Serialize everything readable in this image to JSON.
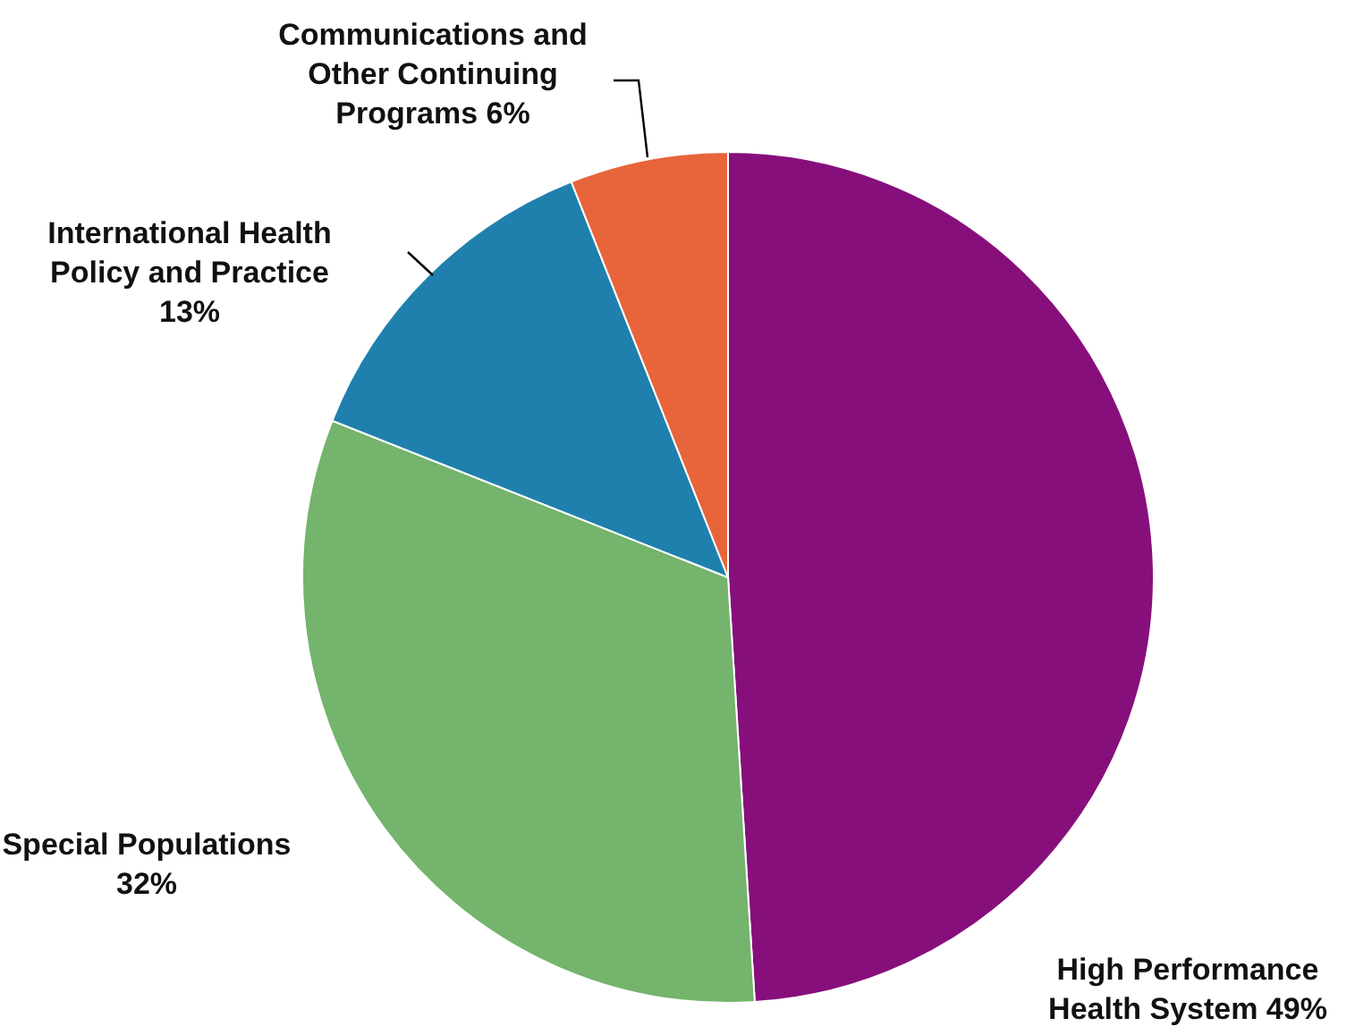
{
  "chart_data": {
    "type": "pie",
    "categories": [
      "High Performance Health System",
      "Special Populations",
      "International Health Policy and Practice",
      "Communications and Other Continuing Programs"
    ],
    "values": [
      49,
      32,
      13,
      6
    ],
    "value_labels": [
      "49%",
      "32%",
      "13%",
      "6%"
    ],
    "colors": [
      "#870f7c",
      "#74b46c",
      "#1f80ad",
      "#e8643a"
    ]
  }
}
